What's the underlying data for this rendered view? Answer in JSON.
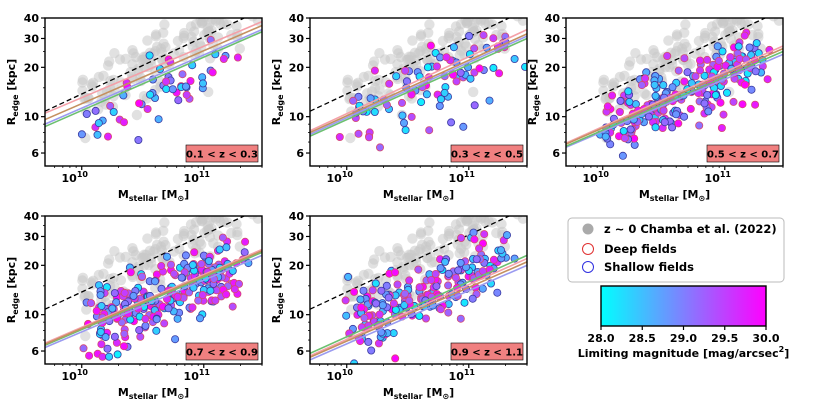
{
  "chart_data": {
    "type": "scatter",
    "x_scale": "log",
    "y_scale": "log",
    "xlim": [
      5000000000,
      300000000000
    ],
    "ylim": [
      5,
      40
    ],
    "x_ticks": [
      {
        "value": 10000000000,
        "base": "10",
        "exp": "10"
      },
      {
        "value": 100000000000,
        "base": "10",
        "exp": "11"
      }
    ],
    "y_ticks": [
      6,
      10,
      20,
      30,
      40
    ],
    "xlabel": {
      "main": "M",
      "sub": "stellar",
      "unit_open": " [M",
      "unit_sub": "⊙",
      "unit_close": "]"
    },
    "ylabel": {
      "main": "R",
      "sub": "edge",
      "unit": " [kpc]"
    },
    "reference_line": {
      "style": "dashed",
      "color": "#000000",
      "description": "upper envelope"
    },
    "colors": {
      "reference_points": "#c8c8c8",
      "badge": "#f08080",
      "fit_deep": "#f4a0a8",
      "fit_shallow": "#9b9bf0",
      "fit_all": "#6cc070",
      "fit_ref": "#c49060"
    },
    "legend": {
      "items": [
        {
          "label": "z ~ 0 Chamba et al. (2022)",
          "marker": "filled-gray-circle"
        },
        {
          "label": "Deep fields",
          "marker": "open-red-circle"
        },
        {
          "label": "Shallow fields",
          "marker": "open-blue-circle"
        }
      ]
    },
    "colorbar": {
      "label": "Limiting magnitude [mag/arcsec",
      "label_sup": "2",
      "label_close": "]",
      "range": [
        28.0,
        30.0
      ],
      "ticks": [
        "28.0",
        "28.5",
        "29.0",
        "29.5",
        "30.0"
      ],
      "cmap": [
        "#00ffff",
        "#ff00ff"
      ]
    },
    "panels": [
      {
        "label": "0.1 < z < 0.3",
        "n_points": 55,
        "fits": [
          {
            "name": "deep",
            "y_at_5e9": 10.5,
            "y_at_3e11": 38
          },
          {
            "name": "shallow",
            "y_at_5e9": 9.0,
            "y_at_3e11": 34
          },
          {
            "name": "all",
            "y_at_5e9": 8.7,
            "y_at_3e11": 33
          },
          {
            "name": "ref",
            "y_at_5e9": 9.6,
            "y_at_3e11": 36
          }
        ],
        "dashed": [
          10.8,
          45
        ]
      },
      {
        "label": "0.3 < z < 0.5",
        "n_points": 95,
        "fits": [
          {
            "name": "deep",
            "y_at_5e9": 8.2,
            "y_at_3e11": 34
          },
          {
            "name": "shallow",
            "y_at_5e9": 7.8,
            "y_at_3e11": 31
          },
          {
            "name": "all",
            "y_at_5e9": 7.6,
            "y_at_3e11": 30
          },
          {
            "name": "ref",
            "y_at_5e9": 8.0,
            "y_at_3e11": 32
          }
        ],
        "dashed": [
          10.8,
          45
        ]
      },
      {
        "label": "0.5 < z < 0.7",
        "n_points": 230,
        "fits": [
          {
            "name": "deep",
            "y_at_5e9": 6.9,
            "y_at_3e11": 27
          },
          {
            "name": "shallow",
            "y_at_5e9": 6.5,
            "y_at_3e11": 24
          },
          {
            "name": "all",
            "y_at_5e9": 6.6,
            "y_at_3e11": 25
          },
          {
            "name": "ref",
            "y_at_5e9": 6.8,
            "y_at_3e11": 26
          }
        ],
        "dashed": [
          10.8,
          45
        ]
      },
      {
        "label": "0.7 < z < 0.9",
        "n_points": 270,
        "fits": [
          {
            "name": "deep",
            "y_at_5e9": 6.7,
            "y_at_3e11": 25
          },
          {
            "name": "shallow",
            "y_at_5e9": 6.3,
            "y_at_3e11": 23
          },
          {
            "name": "all",
            "y_at_5e9": 6.5,
            "y_at_3e11": 24
          },
          {
            "name": "ref",
            "y_at_5e9": 6.6,
            "y_at_3e11": 24.5
          }
        ],
        "dashed": [
          10.8,
          45
        ]
      },
      {
        "label": "0.9 < z < 1.1",
        "n_points": 210,
        "fits": [
          {
            "name": "deep",
            "y_at_5e9": 5.6,
            "y_at_3e11": 22
          },
          {
            "name": "shallow",
            "y_at_5e9": 5.3,
            "y_at_3e11": 20
          },
          {
            "name": "all",
            "y_at_5e9": 5.8,
            "y_at_3e11": 23
          },
          {
            "name": "ref",
            "y_at_5e9": 5.5,
            "y_at_3e11": 21
          }
        ],
        "dashed": [
          10.8,
          45
        ]
      }
    ],
    "reference_sample": {
      "n_points": 150,
      "description": "z~0 gray cloud, roughly 1e10–3e11 Msun, 10–40 kpc"
    }
  }
}
